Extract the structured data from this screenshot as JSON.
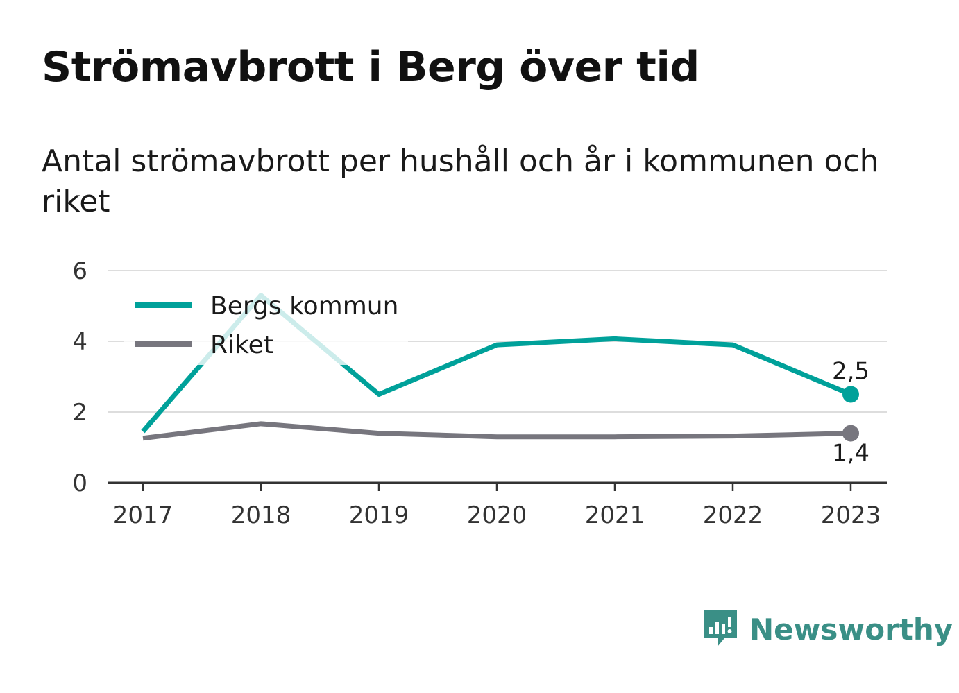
{
  "chart_data": {
    "type": "line",
    "title": "Strömavbrott i Berg över tid",
    "subtitle": "Antal strömavbrott per hushåll och år i kommunen och riket",
    "x": [
      "2017",
      "2018",
      "2019",
      "2020",
      "2021",
      "2022",
      "2023"
    ],
    "series": [
      {
        "name": "Bergs kommun",
        "values": [
          1.45,
          5.3,
          2.5,
          3.9,
          4.07,
          3.9,
          2.5
        ],
        "color": "#00a19a",
        "end_label": "2,5"
      },
      {
        "name": "Riket",
        "values": [
          1.26,
          1.67,
          1.4,
          1.3,
          1.3,
          1.32,
          1.4
        ],
        "color": "#77767e",
        "end_label": "1,4"
      }
    ],
    "yticks": [
      "0",
      "2",
      "4",
      "6"
    ],
    "ylim": [
      0,
      6
    ],
    "grid": true,
    "legend_position": "top-left"
  },
  "brand": {
    "name": "Newsworthy",
    "color": "#3a8f86",
    "icon": "bar-chart-speech-bubble-icon"
  }
}
